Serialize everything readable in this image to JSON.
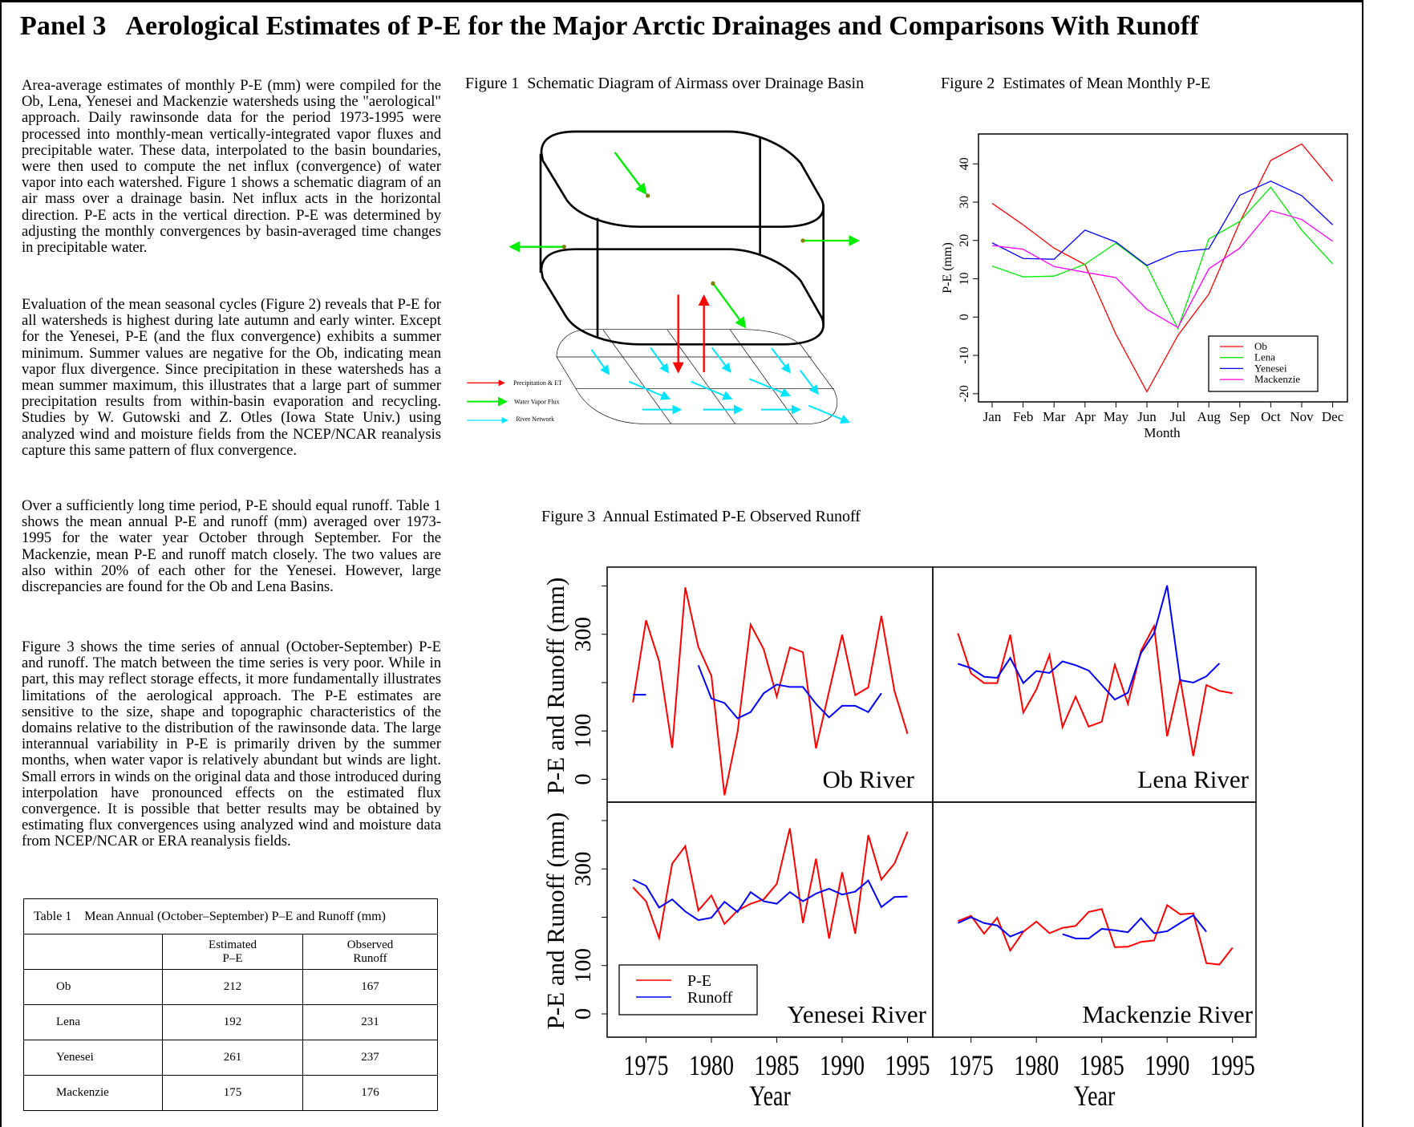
{
  "header": {
    "title": "Panel 3   Aerological Estimates of P-E for the Major Arctic Drainages and Comparisons With Runoff"
  },
  "text": {
    "p1": "Area-average estimates of monthly P-E (mm) were compiled for the Ob, Lena, Yenesei and Mackenzie watersheds using the \"aerological\" approach.  Daily rawinsonde data for the period 1973-1995 were processed into monthly-mean vertically-integrated vapor fluxes and precipitable water.  These data, interpolated to the basin boundaries, were then used to compute the net influx (convergence) of water vapor into each watershed. Figure 1 shows a schematic diagram of an air mass over a drainage basin. Net influx acts in the horizontal direction. P-E acts in the vertical direction. P-E was determined by adjusting the monthly convergences by basin-averaged time changes in precipitable water.",
    "p2": "Evaluation of the mean seasonal cycles (Figure 2) reveals that P-E for all watersheds is highest  during late autumn and early winter.  Except for the Yenesei,  P-E (and the flux convergence) exhibits a summer minimum.  Summer values are negative for the Ob, indicating mean vapor flux divergence.  Since precipitation in these watersheds has a mean summer maximum,  this illustrates that a large part of summer precipitation results from within-basin evaporation and recycling.  Studies by W. Gutowski and Z. Otles (Iowa State Univ.) using analyzed wind and moisture fields from the  NCEP/NCAR reanalysis capture this same pattern of flux convergence.",
    "p3": "Over a sufficiently long time period,  P-E should equal runoff. Table 1 shows the mean annual P-E and runoff (mm) averaged over 1973-1995 for the water year October through September. For the Mackenzie,  mean P-E and runoff match closely.  The two values are also within 20% of each other for the Yenesei. However, large discrepancies  are found for the Ob and Lena Basins.",
    "p4": "Figure 3 shows the time series of annual (October-September) P-E and runoff.  The match between the time series is very poor. While in part,  this may reflect storage effects, it more fundamentally illustrates limitations of the aerological approach. The P-E estimates are sensitive to the size, shape and topographic characteristics of the domains relative to the distribution of the rawinsonde data.  The large interannual variability in P-E is primarily driven by the summer months, when water vapor is relatively abundant but winds are light.  Small errors in winds on the original data and those introduced during interpolation have pronounced effects on the estimated flux convergence.  It is possible that better results may be obtained by estimating flux convergences using analyzed wind and moisture data from NCEP/NCAR or ERA reanalysis fields."
  },
  "figure1": {
    "title": "Figure 1  Schematic Diagram of Airmass over Drainage Basin",
    "legend": [
      "Precipitation & ET",
      "Water Vapor Flux",
      "River Network"
    ],
    "colors": {
      "precip": "#ff0000",
      "vapor": "#00ee00",
      "river": "#00e5ff",
      "dot": "#808000"
    }
  },
  "figure2": {
    "title": "Figure 2  Estimates of Mean Monthly P-E"
  },
  "figure3": {
    "title": "Figure 3  Annual Estimated P-E Observed Runoff"
  },
  "table": {
    "caption": "Table 1    Mean Annual (October–September) P–E and Runoff (mm)",
    "headers": [
      "",
      "Estimated\nP–E",
      "Observed\nRunoff"
    ],
    "header_lines": [
      [
        "Estimated",
        "P–E"
      ],
      [
        "Observed",
        "Runoff"
      ]
    ],
    "rows": [
      {
        "basin": "Ob",
        "pe": "212",
        "runoff": "167"
      },
      {
        "basin": "Lena",
        "pe": "192",
        "runoff": "231"
      },
      {
        "basin": "Yenesei",
        "pe": "261",
        "runoff": "237"
      },
      {
        "basin": "Mackenzie",
        "pe": "175",
        "runoff": "176"
      }
    ]
  },
  "chart_data": [
    {
      "type": "line",
      "title": "Figure 2  Estimates of Mean Monthly P-E",
      "xlabel": "Month",
      "ylabel": "P-E (mm)",
      "categories": [
        "Jan",
        "Feb",
        "Mar",
        "Apr",
        "May",
        "Jun",
        "Jul",
        "Aug",
        "Sep",
        "Oct",
        "Nov",
        "Dec"
      ],
      "ylim": [
        -22,
        48
      ],
      "yticks": [
        "-20",
        "-10",
        "0",
        "10",
        "20",
        "30",
        "40"
      ],
      "legend_position": "bottom-right",
      "series": [
        {
          "name": "Ob",
          "color": "#ff0000",
          "values": [
            29.7,
            24.1,
            18.0,
            13.7,
            -4.5,
            -19.5,
            -4.8,
            6.0,
            24.8,
            40.9,
            45.2,
            35.5
          ]
        },
        {
          "name": "Lena",
          "color": "#00ee00",
          "values": [
            13.3,
            10.5,
            10.7,
            13.8,
            19.3,
            13.3,
            -3.0,
            20.4,
            25.0,
            33.9,
            22.7,
            13.9
          ]
        },
        {
          "name": "Yenesei",
          "color": "#0000ff",
          "values": [
            19.4,
            15.3,
            15.1,
            22.7,
            19.6,
            13.5,
            17.0,
            17.8,
            31.8,
            35.5,
            31.7,
            24.1
          ]
        },
        {
          "name": "Mackenzie",
          "color": "#ff00ff",
          "values": [
            18.7,
            17.7,
            13.2,
            11.7,
            10.3,
            2.0,
            -2.7,
            12.6,
            18.0,
            27.8,
            25.5,
            19.8
          ]
        }
      ]
    },
    {
      "type": "line",
      "title": "Figure 3  Annual Estimated P-E Observed Runoff",
      "xlabel": "Year",
      "ylabel": "P-E and Runoff (mm)",
      "xticks": [
        "1975",
        "1980",
        "1985",
        "1990",
        "1995"
      ],
      "yticks": [
        "0",
        "100",
        "300"
      ],
      "ylim": [
        -55,
        440
      ],
      "legend": [
        {
          "name": "P-E",
          "color": "#ff0000"
        },
        {
          "name": "Runoff",
          "color": "#0000ff"
        }
      ],
      "legend_position": "bottom-left of Yenesei panel",
      "years": [
        1974,
        1975,
        1976,
        1977,
        1978,
        1979,
        1980,
        1981,
        1982,
        1983,
        1984,
        1985,
        1986,
        1987,
        1988,
        1989,
        1990,
        1991,
        1992,
        1993,
        1994,
        1995
      ],
      "panels": [
        {
          "name": "Ob River",
          "pe": [
            159,
            329,
            244,
            65,
            397,
            274,
            214,
            -33,
            98,
            320,
            269,
            171,
            273,
            263,
            64,
            182,
            299,
            174,
            190,
            338,
            183,
            94
          ],
          "runoff": [
            175,
            175,
            null,
            null,
            null,
            236,
            167,
            158,
            126,
            139,
            178,
            196,
            191,
            191,
            156,
            128,
            152,
            152,
            139,
            178,
            null,
            null
          ]
        },
        {
          "name": "Lena River",
          "pe": [
            302,
            219,
            199,
            199,
            299,
            138,
            186,
            257,
            108,
            171,
            109,
            119,
            237,
            156,
            266,
            317,
            89,
            208,
            48,
            195,
            183,
            178
          ],
          "runoff": [
            239,
            230,
            212,
            210,
            251,
            199,
            224,
            220,
            244,
            236,
            225,
            195,
            165,
            179,
            261,
            302,
            401,
            205,
            200,
            213,
            240,
            null
          ]
        },
        {
          "name": "Yenesei River",
          "pe": [
            262,
            233,
            157,
            311,
            347,
            214,
            245,
            186,
            214,
            228,
            237,
            269,
            384,
            188,
            321,
            156,
            293,
            166,
            370,
            278,
            311,
            377
          ],
          "runoff": [
            278,
            265,
            220,
            237,
            212,
            194,
            199,
            232,
            211,
            252,
            233,
            228,
            252,
            233,
            249,
            259,
            247,
            253,
            276,
            221,
            242,
            243
          ]
        },
        {
          "name": "Mackenzie River",
          "pe": [
            192,
            203,
            166,
            199,
            131,
            170,
            191,
            167,
            178,
            182,
            211,
            217,
            138,
            139,
            149,
            152,
            225,
            206,
            208,
            105,
            102,
            137
          ],
          "runoff": [
            188,
            200,
            188,
            183,
            160,
            171,
            null,
            null,
            165,
            156,
            156,
            176,
            173,
            169,
            198,
            167,
            171,
            188,
            204,
            170,
            null,
            null
          ]
        }
      ]
    }
  ]
}
